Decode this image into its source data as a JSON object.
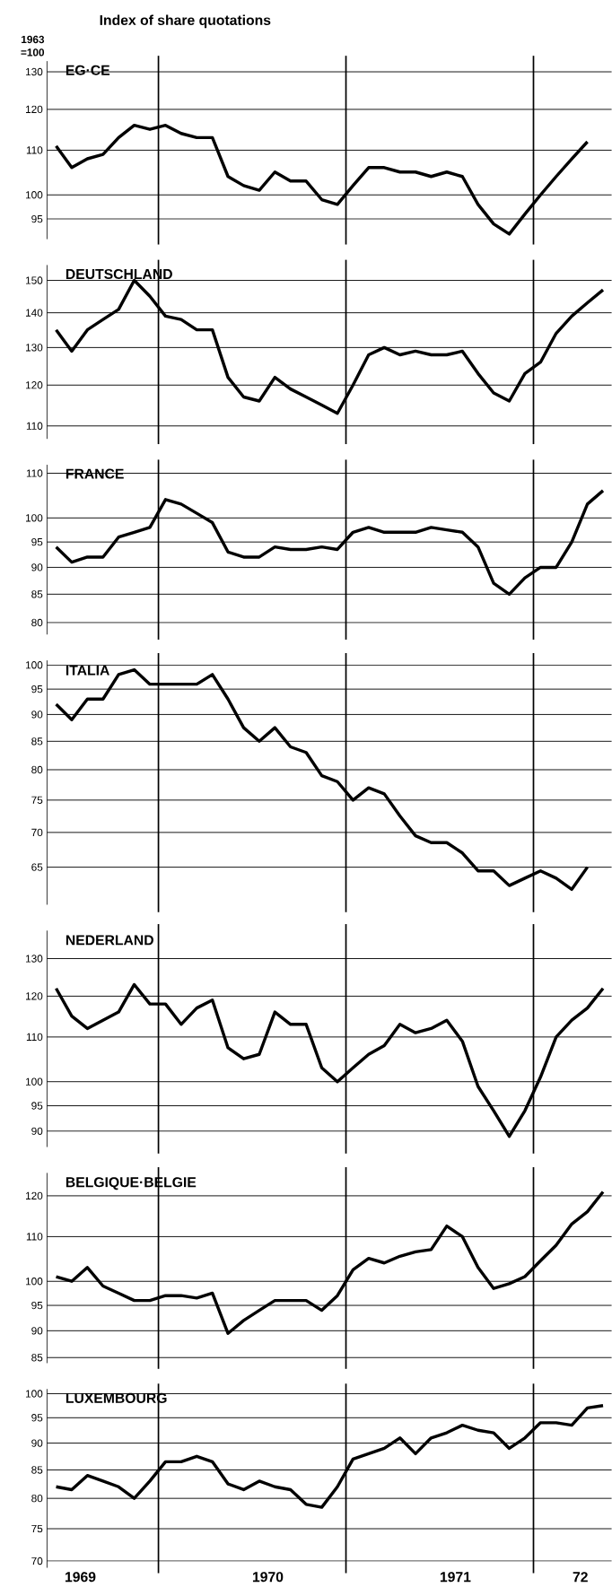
{
  "chart_data": [
    {
      "type": "line",
      "title": "Index of share quotations",
      "ylabel": "1963 =100",
      "series": [
        {
          "name": "EG·CE",
          "color": "#000000",
          "x": [
            "1969-06-15",
            "1969-07-15",
            "1969-08-15",
            "1969-09-15",
            "1969-10-15",
            "1969-11-15",
            "1969-12-15",
            "1970-01-15",
            "1970-02-15",
            "1970-03-15",
            "1970-04-15",
            "1970-05-15",
            "1970-06-15",
            "1970-07-15",
            "1970-08-15",
            "1970-09-15",
            "1970-10-15",
            "1970-11-15",
            "1970-12-15",
            "1971-01-15",
            "1971-02-15",
            "1971-03-15",
            "1971-04-15",
            "1971-05-15",
            "1971-06-15",
            "1971-07-15",
            "1971-08-15",
            "1971-09-15",
            "1971-10-15",
            "1971-11-15",
            "1971-12-15",
            "1972-01-15",
            "1972-02-15",
            "1972-03-15",
            "1972-04-15"
          ],
          "values": [
            111,
            106,
            108,
            109,
            113,
            116,
            115,
            116,
            114,
            113,
            113,
            104,
            102,
            101,
            105,
            103,
            103,
            99,
            98,
            102,
            106,
            106,
            105,
            105,
            104,
            105,
            104,
            98,
            94,
            92,
            96,
            100,
            104,
            108,
            112
          ]
        }
      ],
      "xlim": [
        "1969-05-28",
        "1972-06-01"
      ],
      "ylim": [
        91,
        133
      ],
      "yticks": [
        95,
        100,
        110,
        120,
        130
      ],
      "log": true,
      "grid": "y",
      "tick_labels": "y",
      "ref_lines": [
        {
          "axis": "x",
          "value": "1970-01-01"
        },
        {
          "axis": "x",
          "value": "1971-01-01"
        },
        {
          "axis": "x",
          "value": "1972-01-01"
        }
      ]
    },
    {
      "type": "line",
      "series": [
        {
          "name": "DEUTSCHLAND",
          "color": "#000000",
          "x": [
            "1969-06-15",
            "1969-07-15",
            "1969-08-15",
            "1969-09-15",
            "1969-10-15",
            "1969-11-15",
            "1969-12-15",
            "1970-01-15",
            "1970-02-15",
            "1970-03-15",
            "1970-04-15",
            "1970-05-15",
            "1970-06-15",
            "1970-07-15",
            "1970-08-15",
            "1970-09-15",
            "1970-10-15",
            "1970-11-15",
            "1970-12-15",
            "1971-01-15",
            "1971-02-15",
            "1971-03-15",
            "1971-04-15",
            "1971-05-15",
            "1971-06-15",
            "1971-07-15",
            "1971-08-15",
            "1971-09-15",
            "1971-10-15",
            "1971-11-15",
            "1971-12-15",
            "1972-01-15",
            "1972-02-15",
            "1972-03-15",
            "1972-04-15",
            "1972-05-15"
          ],
          "values": [
            135,
            129,
            135,
            138,
            141,
            150,
            145,
            139,
            138,
            135,
            135,
            122,
            117,
            116,
            122,
            119,
            117,
            115,
            113,
            120,
            128,
            130,
            128,
            129,
            128,
            128,
            129,
            123,
            118,
            116,
            123,
            126,
            134,
            139,
            143,
            147
          ]
        }
      ],
      "xlim": [
        "1969-05-28",
        "1972-06-01"
      ],
      "ylim": [
        107,
        155
      ],
      "yticks": [
        110,
        120,
        130,
        140,
        150
      ],
      "log": true,
      "grid": "y",
      "tick_labels": "y",
      "ref_lines": [
        {
          "axis": "x",
          "value": "1970-01-01"
        },
        {
          "axis": "x",
          "value": "1971-01-01"
        },
        {
          "axis": "x",
          "value": "1972-01-01"
        }
      ]
    },
    {
      "type": "line",
      "series": [
        {
          "name": "FRANCE",
          "color": "#000000",
          "x": [
            "1969-06-15",
            "1969-07-15",
            "1969-08-15",
            "1969-09-15",
            "1969-10-15",
            "1969-11-15",
            "1969-12-15",
            "1970-01-15",
            "1970-02-15",
            "1970-03-15",
            "1970-04-15",
            "1970-05-15",
            "1970-06-15",
            "1970-07-15",
            "1970-08-15",
            "1970-09-15",
            "1970-10-15",
            "1970-11-15",
            "1970-12-15",
            "1971-01-15",
            "1971-02-15",
            "1971-03-15",
            "1971-04-15",
            "1971-05-15",
            "1971-06-15",
            "1971-07-15",
            "1971-08-15",
            "1971-09-15",
            "1971-10-15",
            "1971-11-15",
            "1971-12-15",
            "1972-01-15",
            "1972-02-15",
            "1972-03-15",
            "1972-04-15",
            "1972-05-15"
          ],
          "values": [
            94,
            91,
            92,
            92,
            96,
            97,
            98,
            104,
            103,
            101,
            99,
            93,
            92,
            92,
            94,
            93.5,
            93.5,
            94,
            93.5,
            97,
            98,
            97,
            97,
            97,
            98,
            97.5,
            97,
            94,
            87,
            85,
            88,
            90,
            90,
            95,
            103,
            106
          ]
        }
      ],
      "xlim": [
        "1969-05-28",
        "1972-06-01"
      ],
      "ylim": [
        78,
        112
      ],
      "yticks": [
        80,
        85,
        90,
        95,
        100,
        110
      ],
      "log": true,
      "grid": "y",
      "tick_labels": "y",
      "ref_lines": [
        {
          "axis": "x",
          "value": "1970-01-01"
        },
        {
          "axis": "x",
          "value": "1971-01-01"
        },
        {
          "axis": "x",
          "value": "1972-01-01"
        }
      ]
    },
    {
      "type": "line",
      "series": [
        {
          "name": "ITALIA",
          "color": "#000000",
          "x": [
            "1969-06-15",
            "1969-07-15",
            "1969-08-15",
            "1969-09-15",
            "1969-10-15",
            "1969-11-15",
            "1969-12-15",
            "1970-01-15",
            "1970-02-15",
            "1970-03-15",
            "1970-04-15",
            "1970-05-15",
            "1970-06-15",
            "1970-07-15",
            "1970-08-15",
            "1970-09-15",
            "1970-10-15",
            "1970-11-15",
            "1970-12-15",
            "1971-01-15",
            "1971-02-15",
            "1971-03-15",
            "1971-04-15",
            "1971-05-15",
            "1971-06-15",
            "1971-07-15",
            "1971-08-15",
            "1971-09-15",
            "1971-10-15",
            "1971-11-15",
            "1971-12-15",
            "1972-01-15",
            "1972-02-15",
            "1972-03-15",
            "1972-04-15"
          ],
          "values": [
            92,
            89,
            93,
            93,
            98,
            99,
            96,
            96,
            96,
            96,
            98,
            93,
            87.5,
            85,
            87.5,
            84,
            83,
            79,
            78,
            75,
            77,
            76,
            72.5,
            69.5,
            68.5,
            68.5,
            67,
            64.5,
            64.5,
            62.5,
            63.5,
            64.5,
            63.5,
            62,
            65
          ]
        }
      ],
      "xlim": [
        "1969-05-28",
        "1972-06-01"
      ],
      "ylim": [
        60,
        101
      ],
      "yticks": [
        65,
        70,
        75,
        80,
        85,
        90,
        95,
        100
      ],
      "log": true,
      "grid": "y",
      "tick_labels": "y",
      "ref_lines": [
        {
          "axis": "x",
          "value": "1970-01-01"
        },
        {
          "axis": "x",
          "value": "1971-01-01"
        },
        {
          "axis": "x",
          "value": "1972-01-01"
        }
      ]
    },
    {
      "type": "line",
      "series": [
        {
          "name": "NEDERLAND",
          "color": "#000000",
          "x": [
            "1969-06-15",
            "1969-07-15",
            "1969-08-15",
            "1969-09-15",
            "1969-10-15",
            "1969-11-15",
            "1969-12-15",
            "1970-01-15",
            "1970-02-15",
            "1970-03-15",
            "1970-04-15",
            "1970-05-15",
            "1970-06-15",
            "1970-07-15",
            "1970-08-15",
            "1970-09-15",
            "1970-10-15",
            "1970-11-15",
            "1970-12-15",
            "1971-01-15",
            "1971-02-15",
            "1971-03-15",
            "1971-04-15",
            "1971-05-15",
            "1971-06-15",
            "1971-07-15",
            "1971-08-15",
            "1971-09-15",
            "1971-10-15",
            "1971-11-15",
            "1971-12-15",
            "1972-01-15",
            "1972-02-15",
            "1972-03-15",
            "1972-04-15",
            "1972-05-15"
          ],
          "values": [
            122,
            115,
            112,
            114,
            116,
            123,
            118,
            118,
            113,
            117,
            119,
            107.5,
            105,
            106,
            116,
            113,
            113,
            103,
            100,
            103,
            106,
            108,
            113,
            111,
            112,
            114,
            109,
            99,
            94,
            89,
            94,
            101,
            110,
            114,
            117,
            122
          ]
        }
      ],
      "xlim": [
        "1969-05-28",
        "1972-06-01"
      ],
      "ylim": [
        87,
        138
      ],
      "yticks": [
        90,
        95,
        100,
        110,
        120,
        130
      ],
      "log": true,
      "grid": "y",
      "tick_labels": "y",
      "ref_lines": [
        {
          "axis": "x",
          "value": "1970-01-01"
        },
        {
          "axis": "x",
          "value": "1971-01-01"
        },
        {
          "axis": "x",
          "value": "1972-01-01"
        }
      ]
    },
    {
      "type": "line",
      "series": [
        {
          "name": "BELGIQUE·BELGIE",
          "color": "#000000",
          "x": [
            "1969-06-15",
            "1969-07-15",
            "1969-08-15",
            "1969-09-15",
            "1969-10-15",
            "1969-11-15",
            "1969-12-15",
            "1970-01-15",
            "1970-02-15",
            "1970-03-15",
            "1970-04-15",
            "1970-05-15",
            "1970-06-15",
            "1970-07-15",
            "1970-08-15",
            "1970-09-15",
            "1970-10-15",
            "1970-11-15",
            "1970-12-15",
            "1971-01-15",
            "1971-02-15",
            "1971-03-15",
            "1971-04-15",
            "1971-05-15",
            "1971-06-15",
            "1971-07-15",
            "1971-08-15",
            "1971-09-15",
            "1971-10-15",
            "1971-11-15",
            "1971-12-15",
            "1972-01-15",
            "1972-02-15",
            "1972-03-15",
            "1972-04-15",
            "1972-05-15"
          ],
          "values": [
            101,
            100,
            103,
            99,
            97.5,
            96,
            96,
            97,
            97,
            96.5,
            97.5,
            89.5,
            92,
            94,
            96,
            96,
            96,
            94,
            97,
            102.5,
            105,
            104,
            105.5,
            106.5,
            107,
            112.5,
            110,
            103,
            98.5,
            99.5,
            101,
            104.5,
            108,
            113,
            116,
            121
          ]
        }
      ],
      "xlim": [
        "1969-05-28",
        "1972-06-01"
      ],
      "ylim": [
        84,
        126
      ],
      "yticks": [
        85,
        90,
        95,
        100,
        110,
        120
      ],
      "log": true,
      "grid": "y",
      "tick_labels": "y",
      "ref_lines": [
        {
          "axis": "x",
          "value": "1970-01-01"
        },
        {
          "axis": "x",
          "value": "1971-01-01"
        },
        {
          "axis": "x",
          "value": "1972-01-01"
        }
      ]
    },
    {
      "type": "line",
      "series": [
        {
          "name": "LUXEMBOURG",
          "color": "#000000",
          "x": [
            "1969-06-15",
            "1969-07-15",
            "1969-08-15",
            "1969-09-15",
            "1969-10-15",
            "1969-11-15",
            "1969-12-15",
            "1970-01-15",
            "1970-02-15",
            "1970-03-15",
            "1970-04-15",
            "1970-05-15",
            "1970-06-15",
            "1970-07-15",
            "1970-08-15",
            "1970-09-15",
            "1970-10-15",
            "1970-11-15",
            "1970-12-15",
            "1971-01-15",
            "1971-02-15",
            "1971-03-15",
            "1971-04-15",
            "1971-05-15",
            "1971-06-15",
            "1971-07-15",
            "1971-08-15",
            "1971-09-15",
            "1971-10-15",
            "1971-11-15",
            "1971-12-15",
            "1972-01-15",
            "1972-02-15",
            "1972-03-15",
            "1972-04-15",
            "1972-05-15"
          ],
          "values": [
            82,
            81.5,
            84,
            83,
            82,
            80,
            83,
            86.5,
            86.5,
            87.5,
            86.5,
            82.5,
            81.5,
            83,
            82,
            81.5,
            79,
            78.5,
            82,
            87,
            88,
            89,
            91,
            88,
            91,
            92,
            93.5,
            92.5,
            92,
            89,
            91,
            94,
            94,
            93.5,
            97,
            97.5
          ]
        }
      ],
      "xlim": [
        "1969-05-28",
        "1972-06-01"
      ],
      "xticks": [
        {
          "value": "1969-08-01",
          "label": "1969"
        },
        {
          "value": "1970-08-01",
          "label": "1970"
        },
        {
          "value": "1971-08-01",
          "label": "1971"
        },
        {
          "value": "1972-04-01",
          "label": "72"
        }
      ],
      "ylim": [
        69,
        101
      ],
      "yticks": [
        70,
        75,
        80,
        85,
        90,
        95,
        100
      ],
      "log": true,
      "grid": "y",
      "ref_lines": [
        {
          "axis": "x",
          "value": "1970-01-01"
        },
        {
          "axis": "x",
          "value": "1971-01-01"
        },
        {
          "axis": "x",
          "value": "1972-01-01"
        }
      ]
    }
  ]
}
